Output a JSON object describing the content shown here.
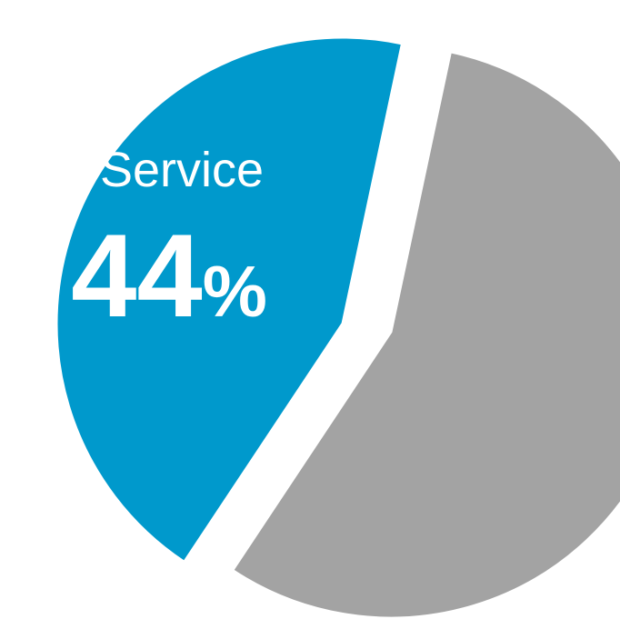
{
  "chart_data": {
    "type": "pie",
    "slices": [
      {
        "label": "Service",
        "value": 44,
        "value_text": "44",
        "unit": "%",
        "color": "#0099CC",
        "exploded": true
      },
      {
        "label": "",
        "value": 56,
        "color": "#A3A3A3",
        "exploded": false
      }
    ],
    "legend": "none"
  }
}
